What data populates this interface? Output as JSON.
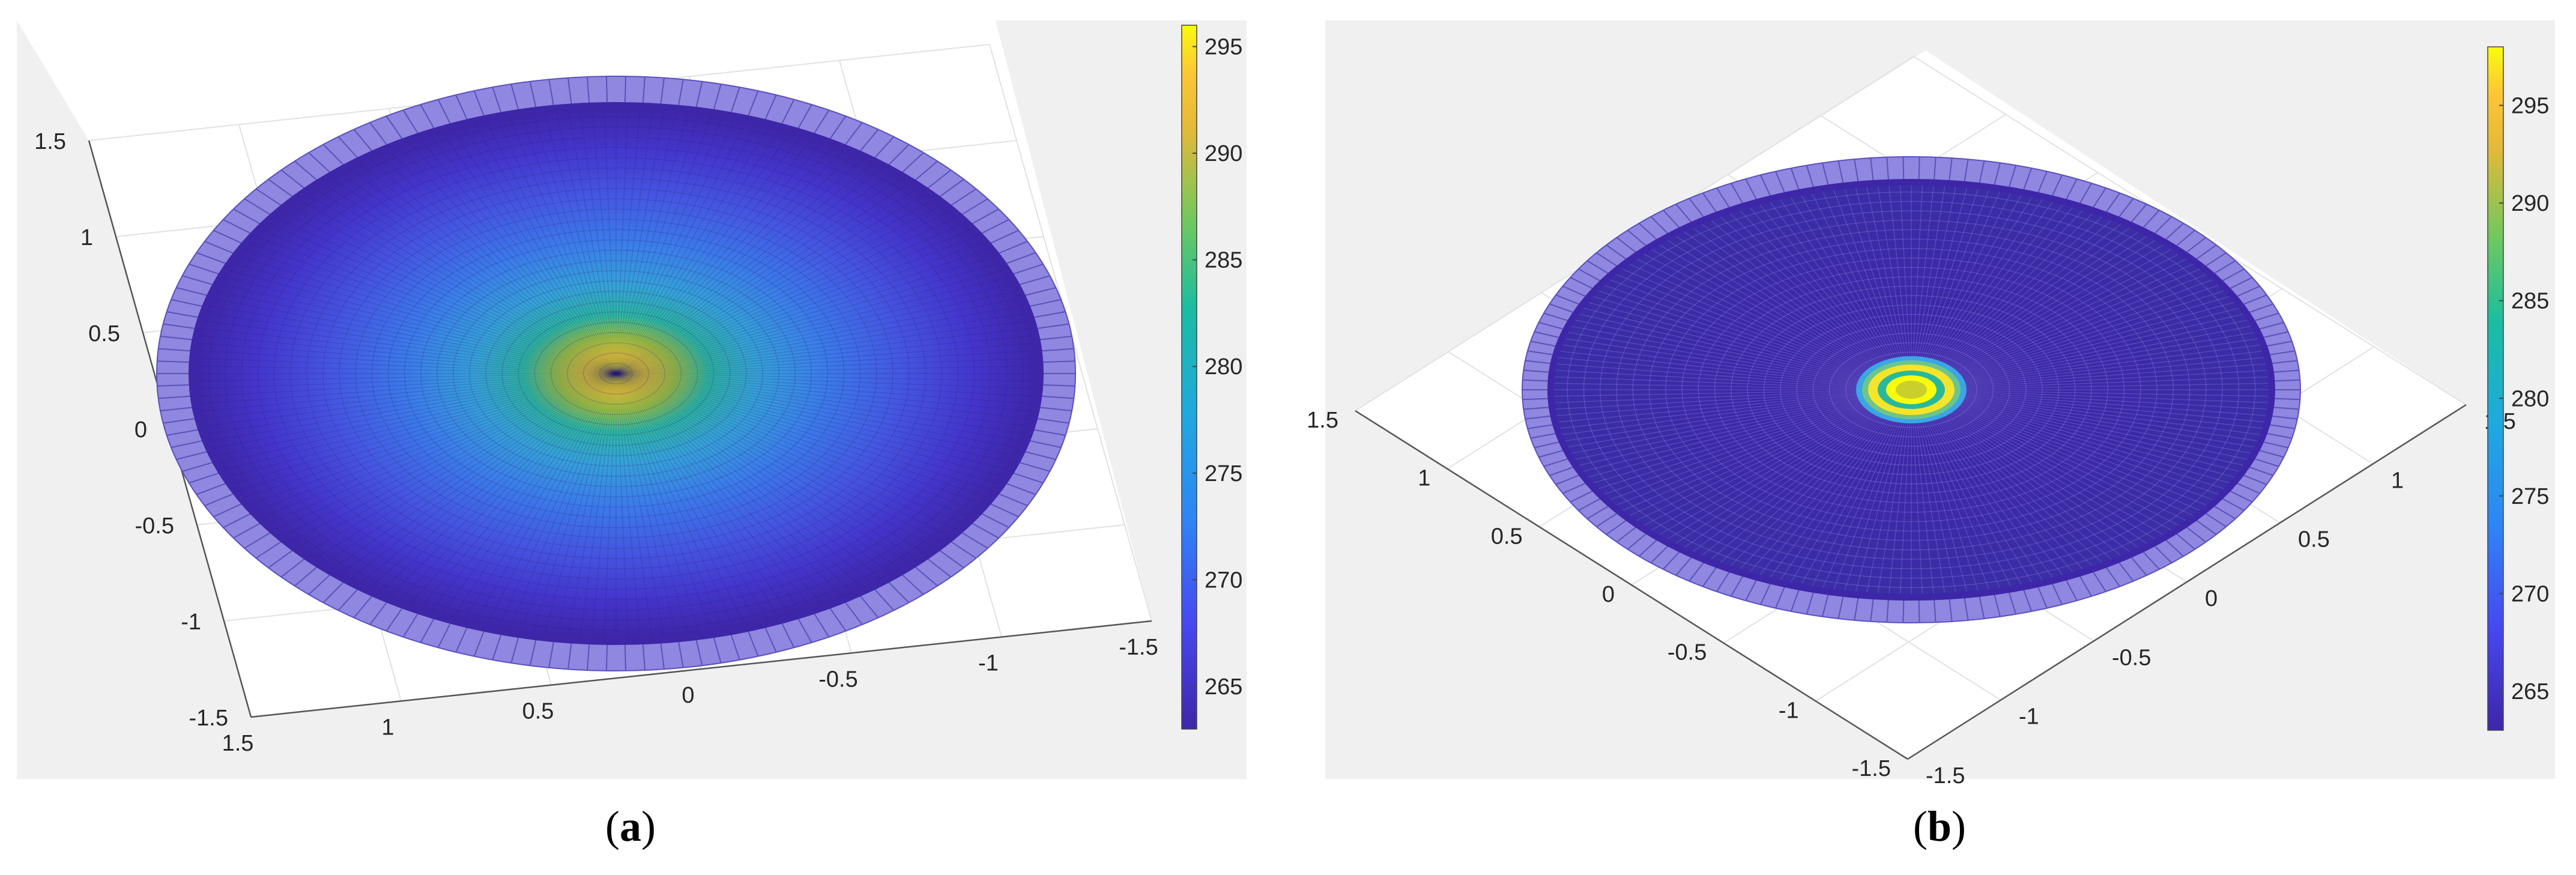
{
  "captions": {
    "a": "a",
    "b": "b"
  },
  "colors": {
    "min": "#3e26a8",
    "mid": "#20b2a8",
    "max": "#f9fb0e",
    "panel_bg": "#f0f0f0"
  },
  "chart_data": [
    {
      "type": "heatmap",
      "panel": "a",
      "title": "",
      "surface": "disc temperature field (top-oblique view)",
      "radius": 1.5,
      "xlim": [
        -1.5,
        1.5
      ],
      "ylim": [
        -1.5,
        1.5
      ],
      "x_ticks": [
        "1.5",
        "1",
        "0.5",
        "0",
        "-0.5",
        "-1",
        "-1.5"
      ],
      "y_ticks": [
        "1.5",
        "1",
        "0.5",
        "0",
        "-0.5",
        "-1",
        "-1.5"
      ],
      "colorbar": {
        "min": 263,
        "max": 296,
        "ticks": [
          265,
          270,
          275,
          280,
          285,
          290,
          295
        ]
      },
      "field": {
        "center_value": 295,
        "edge_value": 263,
        "profile": "smooth radial decay"
      },
      "grid": true
    },
    {
      "type": "heatmap",
      "panel": "b",
      "title": "",
      "surface": "disc temperature field (isometric view)",
      "radius": 1.5,
      "xlim": [
        -1.5,
        1.5
      ],
      "ylim": [
        -1.5,
        1.5
      ],
      "x_ticks": [
        "-1.5",
        "-1",
        "-0.5",
        "0",
        "0.5",
        "1",
        "1.5"
      ],
      "y_ticks": [
        "-1.5",
        "-1",
        "-0.5",
        "0",
        "0.5",
        "1",
        "1.5"
      ],
      "colorbar": {
        "min": 263,
        "max": 298,
        "ticks": [
          265,
          270,
          275,
          280,
          285,
          290,
          295
        ]
      },
      "field": {
        "center_value": 292,
        "ring_value": 298,
        "edge_value": 263,
        "profile": "localized hot spot with bright ring"
      },
      "grid": true
    }
  ]
}
